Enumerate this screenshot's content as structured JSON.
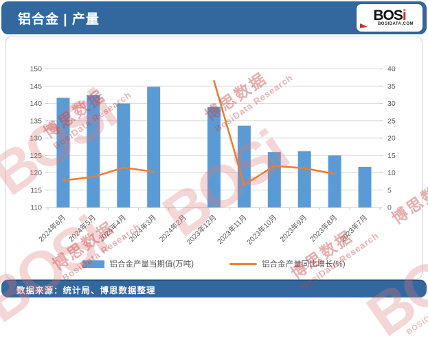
{
  "header": {
    "title": "铝合金 | 产量",
    "logo": {
      "text": "BOS",
      "text_i": "i",
      "subtext": "BOSIDATA.COM"
    }
  },
  "footer": {
    "source": "数据来源：统计局、博思数据整理"
  },
  "watermark": {
    "cn": "博思数据",
    "en": "BosiData Research",
    "logo": "BOSi",
    "site": "BOSIDATA.COM"
  },
  "colors": {
    "header_bg": "#33689E",
    "bar": "#5B9BD5",
    "line": "#ED7D31",
    "grid": "#DCDCDC",
    "axis": "#C9C9C9",
    "axis_text": "#595959",
    "watermark_red": "#C83C3C"
  },
  "chart_data": {
    "type": "bar",
    "subtype": "bar+line dual-axis",
    "categories": [
      "2024年6月",
      "2024年5月",
      "2024年4月",
      "2024年3月",
      "2024年2月",
      "2023年12月",
      "2023年11月",
      "2023年10月",
      "2023年9月",
      "2023年8月",
      "2023年7月"
    ],
    "series": [
      {
        "name": "铝合金产量当期值(万吨)",
        "type": "bar",
        "axis": "left",
        "color": "#5B9BD5",
        "values": [
          141.6,
          142.4,
          140.0,
          144.8,
          null,
          139.0,
          133.6,
          126.0,
          126.2,
          125.0,
          121.7
        ]
      },
      {
        "name": "铝合金产量同比增长(%)",
        "type": "line",
        "axis": "right",
        "color": "#ED7D31",
        "values": [
          7.8,
          8.8,
          11.5,
          10.3,
          null,
          36.5,
          6.5,
          12.0,
          11.3,
          9.7,
          null
        ]
      }
    ],
    "left_axis": {
      "min": 110,
      "max": 150,
      "step": 5,
      "ticks": [
        110,
        115,
        120,
        125,
        130,
        135,
        140,
        145,
        150
      ]
    },
    "right_axis": {
      "min": 0,
      "max": 40,
      "step": 5,
      "ticks": [
        0,
        5,
        10,
        15,
        20,
        25,
        30,
        35,
        40
      ]
    },
    "grid": true,
    "legend_position": "bottom",
    "x_label_rotation": -45
  }
}
